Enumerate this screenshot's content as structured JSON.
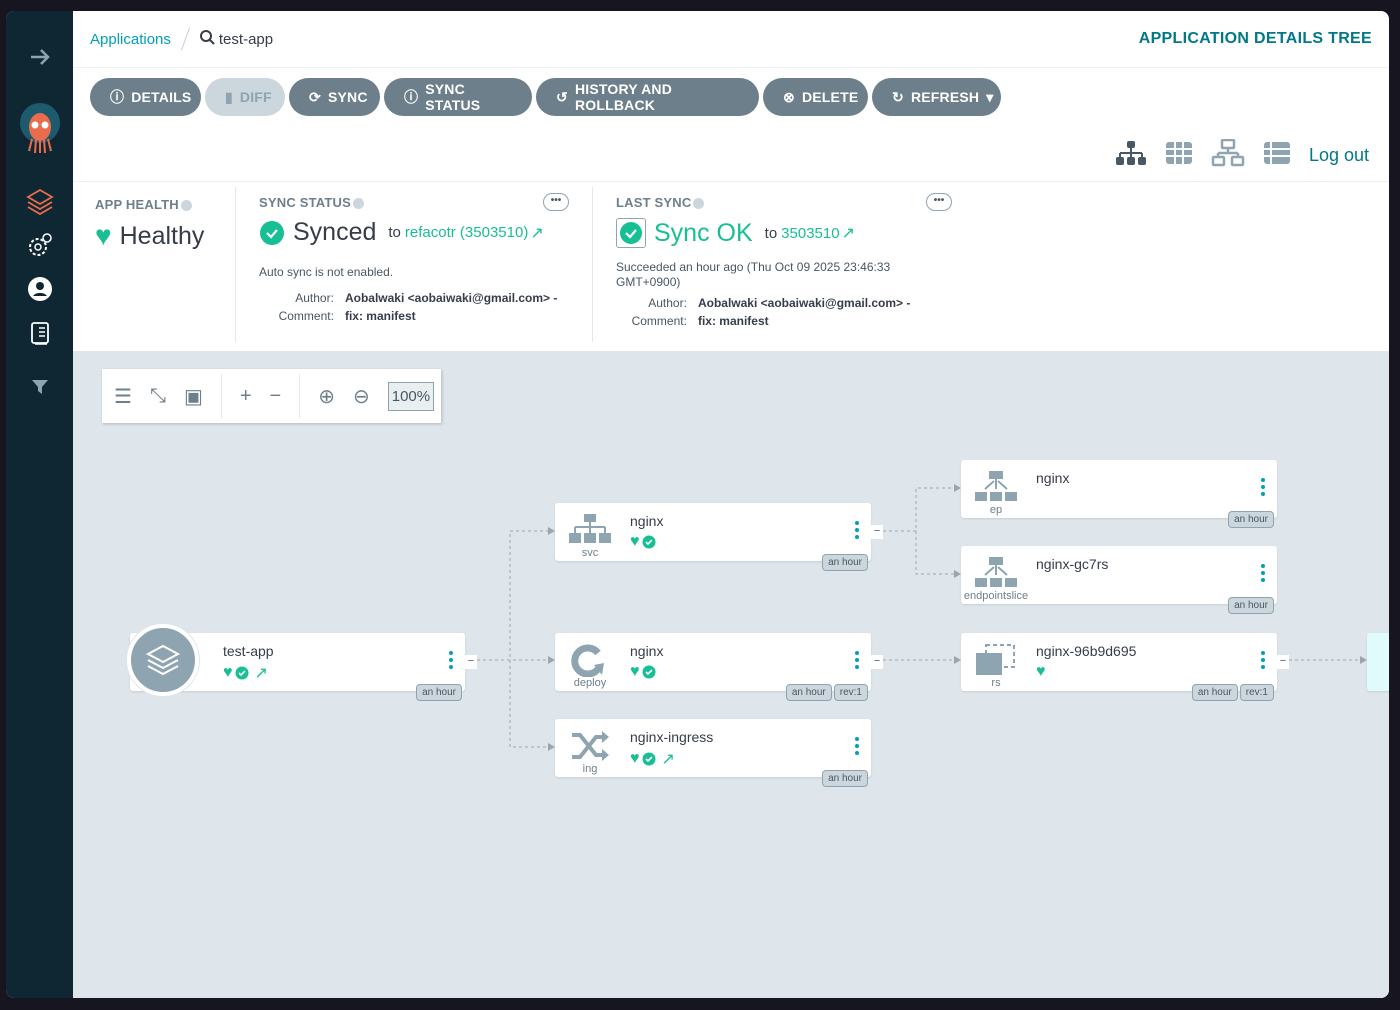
{
  "breadcrumb": {
    "root": "Applications",
    "current": "test-app"
  },
  "page_title": "APPLICATION DETAILS TREE",
  "toolbar": [
    "DETAILS",
    "DIFF",
    "SYNC",
    "SYNC STATUS",
    "HISTORY AND ROLLBACK",
    "DELETE",
    "REFRESH"
  ],
  "logout": "Log out",
  "health": {
    "label": "APP HEALTH",
    "value": "Healthy"
  },
  "sync_status": {
    "label": "SYNC STATUS",
    "value": "Synced",
    "to": "to",
    "target": "refacotr (3503510)",
    "auto": "Auto sync is not enabled.",
    "author_k": "Author:",
    "author": "Aobalwaki <aobaiwaki@gmail.com> -",
    "comment_k": "Comment:",
    "comment": "fix: manifest"
  },
  "last_sync": {
    "label": "LAST SYNC",
    "value": "Sync OK",
    "to": "to",
    "revision": "3503510",
    "when": "Succeeded an hour ago (Thu Oct 09 2025 23:46:33 GMT+0900)",
    "author_k": "Author:",
    "author": "Aobalwaki <aobaiwaki@gmail.com> -",
    "comment_k": "Comment:",
    "comment": "fix: manifest"
  },
  "zoom": "100%",
  "colors": {
    "sidebar": "#0f2733",
    "healthy": "#18be94",
    "accent": "#00a2b3",
    "button": "#6d7f8b"
  },
  "app_node": {
    "name": "test-app",
    "age": "an hour"
  },
  "nodes": [
    {
      "name": "nginx",
      "kind": "svc",
      "icon": "service-icon",
      "health": true,
      "sync": true,
      "age": "an hour"
    },
    {
      "name": "nginx",
      "kind": "deploy",
      "icon": "deployment-icon",
      "health": true,
      "sync": true,
      "age": "an hour",
      "rev": "rev:1"
    },
    {
      "name": "nginx-ingress",
      "kind": "ing",
      "icon": "ingress-icon",
      "health": true,
      "sync": true,
      "link": true,
      "age": "an hour"
    },
    {
      "name": "nginx",
      "kind": "ep",
      "icon": "endpoints-icon",
      "age": "an hour"
    },
    {
      "name": "nginx-gc7rs",
      "kind": "endpointslice",
      "icon": "endpoints-icon",
      "age": "an hour"
    },
    {
      "name": "nginx-96b9d695",
      "kind": "rs",
      "icon": "replicaset-icon",
      "health": true,
      "age": "an hour",
      "rev": "rev:1"
    }
  ]
}
